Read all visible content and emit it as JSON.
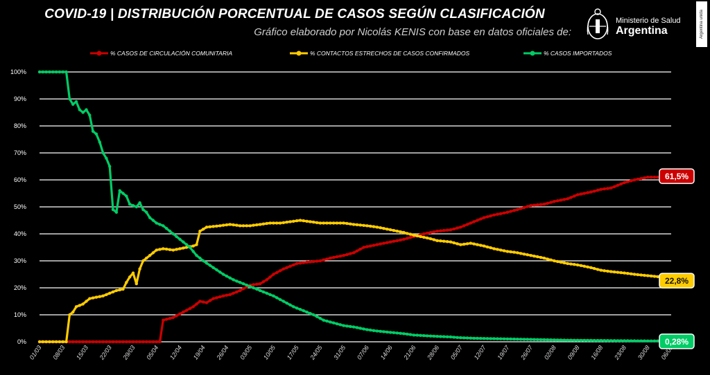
{
  "header": {
    "title": "COVID-19  |  DISTRIBUCIÓN PORCENTUAL DE CASOS SEGÚN CLASIFICACIÓN",
    "subtitle": "Gráfico elaborado por Nicolás KENIS con base en datos oficiales de:",
    "logo_line1": "Ministerio de Salud",
    "logo_line2": "Argentina",
    "side_tag": "Argentina unida"
  },
  "chart_data": {
    "type": "line",
    "title": "COVID-19 | DISTRIBUCIÓN PORCENTUAL DE CASOS SEGÚN CLASIFICACIÓN",
    "xlabel": "",
    "ylabel": "",
    "ylim": [
      0,
      100
    ],
    "y_ticks": [
      "0%",
      "10%",
      "20%",
      "30%",
      "40%",
      "50%",
      "60%",
      "70%",
      "80%",
      "90%",
      "100%"
    ],
    "x_ticks": [
      "01/03",
      "08/03",
      "15/03",
      "22/03",
      "29/03",
      "05/04",
      "12/04",
      "19/04",
      "26/04",
      "03/05",
      "10/05",
      "17/05",
      "24/05",
      "31/05",
      "07/06",
      "14/06",
      "21/06",
      "28/06",
      "05/07",
      "12/07",
      "19/07",
      "26/07",
      "02/08",
      "09/08",
      "16/08",
      "23/08",
      "30/08",
      "06/09"
    ],
    "grid": true,
    "legend_position": "top",
    "series": [
      {
        "name": "% CASOS DE CIRCULACIÓN COMUNITARIA",
        "color": "#cc0000",
        "final_label": "61,5%",
        "points": [
          [
            0,
            0
          ],
          [
            36,
            0
          ],
          [
            37,
            8
          ],
          [
            40,
            9
          ],
          [
            43,
            11
          ],
          [
            46,
            13
          ],
          [
            48,
            15
          ],
          [
            50,
            14.5
          ],
          [
            52,
            16
          ],
          [
            55,
            17
          ],
          [
            57,
            17.5
          ],
          [
            60,
            19
          ],
          [
            63,
            21
          ],
          [
            66,
            21.5
          ],
          [
            68,
            23
          ],
          [
            70,
            25
          ],
          [
            73,
            27
          ],
          [
            77,
            29
          ],
          [
            80,
            29.5
          ],
          [
            84,
            30
          ],
          [
            87,
            31
          ],
          [
            91,
            32
          ],
          [
            94,
            33
          ],
          [
            97,
            35
          ],
          [
            101,
            36
          ],
          [
            105,
            37
          ],
          [
            109,
            38
          ],
          [
            112,
            39
          ],
          [
            115,
            40
          ],
          [
            119,
            41
          ],
          [
            123,
            41.5
          ],
          [
            126,
            42.5
          ],
          [
            129,
            44
          ],
          [
            133,
            46
          ],
          [
            136,
            47
          ],
          [
            140,
            48
          ],
          [
            143,
            49
          ],
          [
            147,
            50.5
          ],
          [
            151,
            51
          ],
          [
            154,
            52
          ],
          [
            158,
            53
          ],
          [
            161,
            54.5
          ],
          [
            165,
            55.5
          ],
          [
            168,
            56.5
          ],
          [
            171,
            57
          ],
          [
            175,
            59
          ],
          [
            178,
            60
          ],
          [
            182,
            61
          ],
          [
            186,
            61
          ],
          [
            190,
            61
          ],
          [
            193,
            61
          ],
          [
            195,
            61.5
          ]
        ]
      },
      {
        "name": "% CONTACTOS ESTRECHOS DE CASOS CONFIRMADOS",
        "color": "#ffcc00",
        "final_label": "22,8%",
        "points": [
          [
            0,
            0
          ],
          [
            8,
            0
          ],
          [
            9,
            10
          ],
          [
            10,
            11
          ],
          [
            11,
            13
          ],
          [
            12,
            13.5
          ],
          [
            13,
            14
          ],
          [
            14,
            15
          ],
          [
            15,
            16
          ],
          [
            17,
            16.5
          ],
          [
            19,
            17
          ],
          [
            21,
            18
          ],
          [
            23,
            19
          ],
          [
            25,
            19.5
          ],
          [
            26,
            22
          ],
          [
            27,
            24
          ],
          [
            28,
            25.5
          ],
          [
            29,
            21.5
          ],
          [
            30,
            27
          ],
          [
            31,
            30
          ],
          [
            32,
            31
          ],
          [
            33,
            32
          ],
          [
            34,
            33
          ],
          [
            35,
            34
          ],
          [
            37,
            34.5
          ],
          [
            40,
            34
          ],
          [
            42,
            34.5
          ],
          [
            44,
            35
          ],
          [
            46,
            35.5
          ],
          [
            47,
            36
          ],
          [
            48,
            41
          ],
          [
            50,
            42.5
          ],
          [
            54,
            43
          ],
          [
            57,
            43.5
          ],
          [
            60,
            43
          ],
          [
            63,
            43
          ],
          [
            66,
            43.5
          ],
          [
            69,
            44
          ],
          [
            72,
            44
          ],
          [
            75,
            44.5
          ],
          [
            78,
            45
          ],
          [
            81,
            44.5
          ],
          [
            84,
            44
          ],
          [
            87,
            44
          ],
          [
            91,
            44
          ],
          [
            94,
            43.5
          ],
          [
            98,
            43
          ],
          [
            101,
            42.5
          ],
          [
            105,
            41.5
          ],
          [
            109,
            40.5
          ],
          [
            112,
            39.5
          ],
          [
            116,
            38.5
          ],
          [
            119,
            37.5
          ],
          [
            123,
            37
          ],
          [
            126,
            36
          ],
          [
            129,
            36.5
          ],
          [
            133,
            35.5
          ],
          [
            136,
            34.5
          ],
          [
            140,
            33.5
          ],
          [
            143,
            33
          ],
          [
            147,
            32
          ],
          [
            151,
            31
          ],
          [
            154,
            30
          ],
          [
            158,
            29
          ],
          [
            161,
            28.5
          ],
          [
            165,
            27.5
          ],
          [
            168,
            26.5
          ],
          [
            171,
            26
          ],
          [
            175,
            25.5
          ],
          [
            178,
            25
          ],
          [
            182,
            24.5
          ],
          [
            186,
            24
          ],
          [
            190,
            23.5
          ],
          [
            193,
            23
          ],
          [
            195,
            22.8
          ]
        ]
      },
      {
        "name": "% CASOS IMPORTADOS",
        "color": "#00cc66",
        "final_label": "0,28%",
        "points": [
          [
            0,
            100
          ],
          [
            8,
            100
          ],
          [
            9,
            90
          ],
          [
            10,
            88
          ],
          [
            11,
            89
          ],
          [
            12,
            86
          ],
          [
            13,
            85
          ],
          [
            14,
            86
          ],
          [
            15,
            84
          ],
          [
            16,
            78
          ],
          [
            17,
            77
          ],
          [
            18,
            74
          ],
          [
            19,
            70
          ],
          [
            20,
            68
          ],
          [
            21,
            65
          ],
          [
            22,
            49
          ],
          [
            23,
            48
          ],
          [
            24,
            56
          ],
          [
            25,
            55
          ],
          [
            26,
            54
          ],
          [
            27,
            51
          ],
          [
            29,
            50
          ],
          [
            30,
            51.5
          ],
          [
            31,
            49
          ],
          [
            32,
            48
          ],
          [
            33,
            46
          ],
          [
            35,
            44
          ],
          [
            37,
            43
          ],
          [
            39,
            41
          ],
          [
            41,
            39
          ],
          [
            43,
            37
          ],
          [
            45,
            35
          ],
          [
            47,
            32
          ],
          [
            49,
            30
          ],
          [
            52,
            27.5
          ],
          [
            55,
            25
          ],
          [
            58,
            23
          ],
          [
            61,
            21.5
          ],
          [
            64,
            20
          ],
          [
            67,
            18.5
          ],
          [
            70,
            17
          ],
          [
            73,
            15
          ],
          [
            76,
            13
          ],
          [
            79,
            11.5
          ],
          [
            82,
            10
          ],
          [
            85,
            8
          ],
          [
            88,
            7
          ],
          [
            91,
            6
          ],
          [
            94,
            5.5
          ],
          [
            98,
            4.5
          ],
          [
            101,
            4
          ],
          [
            105,
            3.5
          ],
          [
            109,
            3
          ],
          [
            112,
            2.5
          ],
          [
            116,
            2.2
          ],
          [
            119,
            2
          ],
          [
            123,
            1.8
          ],
          [
            126,
            1.5
          ],
          [
            130,
            1.3
          ],
          [
            134,
            1.2
          ],
          [
            138,
            1.1
          ],
          [
            142,
            1
          ],
          [
            146,
            0.9
          ],
          [
            150,
            0.8
          ],
          [
            154,
            0.7
          ],
          [
            158,
            0.6
          ],
          [
            162,
            0.55
          ],
          [
            166,
            0.5
          ],
          [
            170,
            0.45
          ],
          [
            174,
            0.4
          ],
          [
            178,
            0.35
          ],
          [
            182,
            0.32
          ],
          [
            186,
            0.3
          ],
          [
            190,
            0.29
          ],
          [
            195,
            0.28
          ]
        ]
      }
    ]
  }
}
